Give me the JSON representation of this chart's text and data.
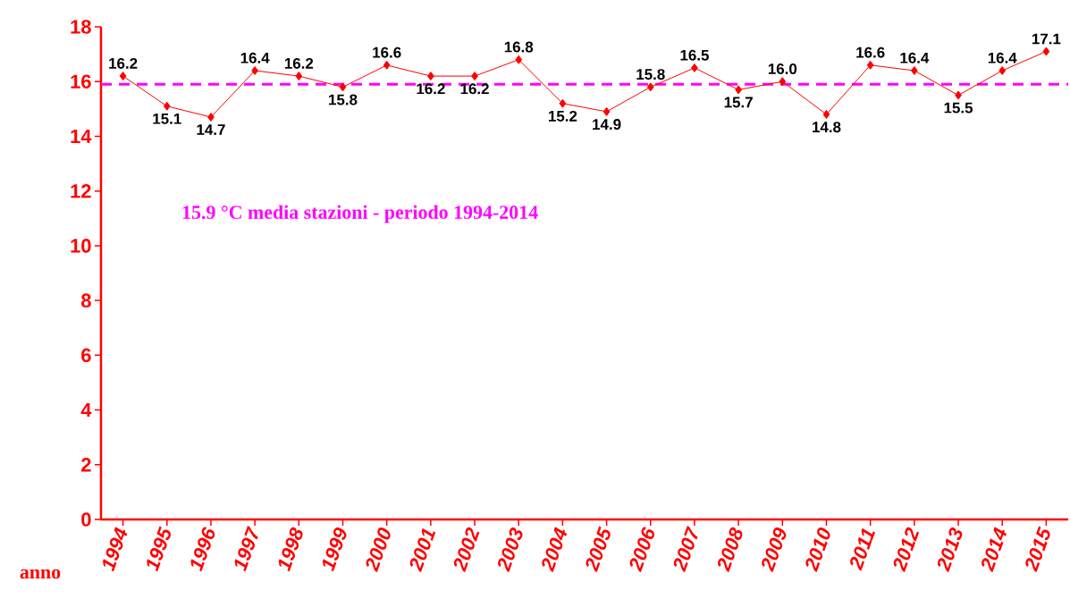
{
  "chart_data": {
    "type": "line",
    "xlabel": "anno",
    "categories": [
      "1994",
      "1995",
      "1996",
      "1997",
      "1998",
      "1999",
      "2000",
      "2001",
      "2002",
      "2003",
      "2004",
      "2005",
      "2006",
      "2007",
      "2008",
      "2009",
      "2010",
      "2011",
      "2012",
      "2013",
      "2014",
      "2015"
    ],
    "series": [
      {
        "color": "#ff0000",
        "values": [
          16.2,
          15.1,
          14.7,
          16.4,
          16.2,
          15.8,
          16.6,
          16.2,
          16.2,
          16.8,
          15.2,
          14.9,
          15.8,
          16.5,
          15.7,
          16.0,
          14.8,
          16.6,
          16.4,
          15.5,
          16.4,
          17.1
        ],
        "value_labels": [
          "16.2",
          "15.1",
          "14.7",
          "16.4",
          "16.2",
          "15.8",
          "16.6",
          "16.2",
          "16.2",
          "16.8",
          "15.2",
          "14.9",
          "15.8",
          "16.5",
          "15.7",
          "16.0",
          "14.8",
          "16.6",
          "16.4",
          "15.5",
          "16.4",
          "17.1"
        ]
      }
    ],
    "ylim": [
      0,
      18
    ],
    "yticks": [
      0,
      2,
      4,
      6,
      8,
      10,
      12,
      14,
      16,
      18
    ],
    "ref_lines": [
      {
        "axis": "y",
        "value": 15.9,
        "label": "15.9 °C media stazioni - periodo 1994-2014",
        "color": "#ff00ff",
        "line_style": "dashed"
      }
    ],
    "marker": "diamond",
    "line_style": "solid",
    "grid": false
  }
}
